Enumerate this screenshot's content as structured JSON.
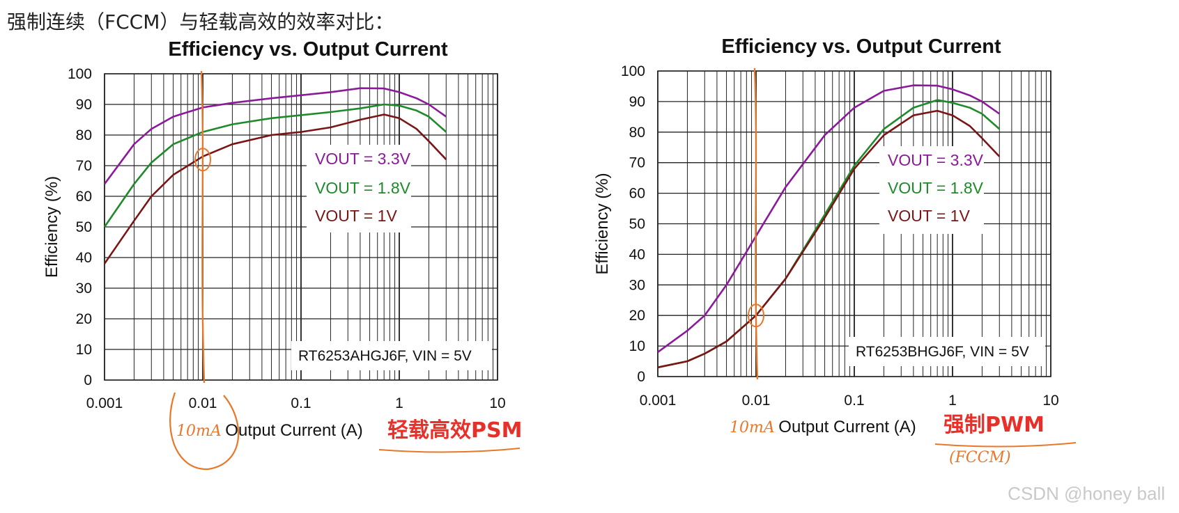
{
  "heading": "强制连续（FCCM）与轻载高效的效率对比：",
  "watermark": "CSDN @honey ball",
  "colors": {
    "vout_3v3": "#8a1a9a",
    "vout_1v8": "#1e8a2a",
    "vout_1v": "#7a1515",
    "annotation": "#e8772a",
    "red_label": "#e8302a"
  },
  "chart_data": [
    {
      "type": "line",
      "title": "Efficiency vs. Output Current",
      "xlabel": "Output Current (A)",
      "ylabel": "Efficiency (%)",
      "xscale": "log",
      "xlim": [
        0.001,
        10
      ],
      "ylim": [
        0,
        100
      ],
      "xticks": [
        "0.001",
        "0.01",
        "0.1",
        "1",
        "10"
      ],
      "yticks": [
        "0",
        "10",
        "20",
        "30",
        "40",
        "50",
        "60",
        "70",
        "80",
        "90",
        "100"
      ],
      "grid": true,
      "part_label": "RT6253AHGJ6F, VIN = 5V",
      "mode_label": "轻载高效PSM",
      "hand_note": "10mA",
      "marker_x": 0.01,
      "series": [
        {
          "name": "VOUT = 3.3V",
          "color": "#8a1a9a",
          "x": [
            0.001,
            0.002,
            0.003,
            0.005,
            0.01,
            0.02,
            0.05,
            0.1,
            0.2,
            0.4,
            0.7,
            1.0,
            1.5,
            2.0,
            3.0
          ],
          "y": [
            64,
            77,
            82,
            86,
            89,
            90.5,
            92,
            93,
            94,
            95.3,
            95.2,
            94,
            92,
            90,
            86
          ]
        },
        {
          "name": "VOUT = 1.8V",
          "color": "#1e8a2a",
          "x": [
            0.001,
            0.002,
            0.003,
            0.005,
            0.01,
            0.02,
            0.05,
            0.1,
            0.2,
            0.4,
            0.7,
            1.0,
            1.5,
            2.0,
            3.0
          ],
          "y": [
            50,
            64,
            71,
            77,
            81,
            83.5,
            85.5,
            86.5,
            87.5,
            88.7,
            90,
            89.6,
            88,
            86,
            81
          ]
        },
        {
          "name": "VOUT = 1V",
          "color": "#7a1515",
          "x": [
            0.001,
            0.002,
            0.003,
            0.005,
            0.01,
            0.02,
            0.05,
            0.1,
            0.2,
            0.4,
            0.7,
            1.0,
            1.5,
            2.0,
            3.0
          ],
          "y": [
            38,
            52,
            60,
            67,
            73,
            77,
            80,
            81,
            82.5,
            85,
            86.7,
            85.5,
            82,
            78,
            72
          ]
        }
      ]
    },
    {
      "type": "line",
      "title": "Efficiency vs. Output Current",
      "xlabel": "Output Current (A)",
      "ylabel": "Efficiency (%)",
      "xscale": "log",
      "xlim": [
        0.001,
        10
      ],
      "ylim": [
        0,
        100
      ],
      "xticks": [
        "0.001",
        "0.01",
        "0.1",
        "1",
        "10"
      ],
      "yticks": [
        "0",
        "10",
        "20",
        "30",
        "40",
        "50",
        "60",
        "70",
        "80",
        "90",
        "100"
      ],
      "grid": true,
      "part_label": "RT6253BHGJ6F, VIN = 5V",
      "mode_label": "强制PWM",
      "mode_note": "(FCCM)",
      "hand_note": "10mA",
      "marker_x": 0.01,
      "series": [
        {
          "name": "VOUT = 3.3V",
          "color": "#8a1a9a",
          "x": [
            0.001,
            0.002,
            0.003,
            0.005,
            0.01,
            0.02,
            0.05,
            0.1,
            0.2,
            0.4,
            0.7,
            1.0,
            1.5,
            2.0,
            3.0
          ],
          "y": [
            8,
            15,
            20,
            30,
            46,
            62,
            79,
            88,
            93.5,
            95.3,
            95.2,
            94,
            92,
            90,
            86
          ]
        },
        {
          "name": "VOUT = 1.8V",
          "color": "#1e8a2a",
          "x": [
            0.001,
            0.002,
            0.003,
            0.005,
            0.01,
            0.02,
            0.05,
            0.1,
            0.2,
            0.4,
            0.7,
            1.0,
            1.5,
            2.0,
            3.0
          ],
          "y": [
            3,
            5,
            7.5,
            11.5,
            20,
            32,
            53,
            69,
            81,
            88,
            90.5,
            89.6,
            88,
            86,
            81
          ]
        },
        {
          "name": "VOUT = 1V",
          "color": "#7a1515",
          "x": [
            0.001,
            0.002,
            0.003,
            0.005,
            0.01,
            0.02,
            0.05,
            0.1,
            0.2,
            0.4,
            0.7,
            1.0,
            1.5,
            2.0,
            3.0
          ],
          "y": [
            3,
            5,
            7.5,
            11.5,
            20,
            32,
            52,
            68,
            79,
            85.5,
            87,
            85.5,
            82,
            78,
            72
          ]
        }
      ]
    }
  ]
}
